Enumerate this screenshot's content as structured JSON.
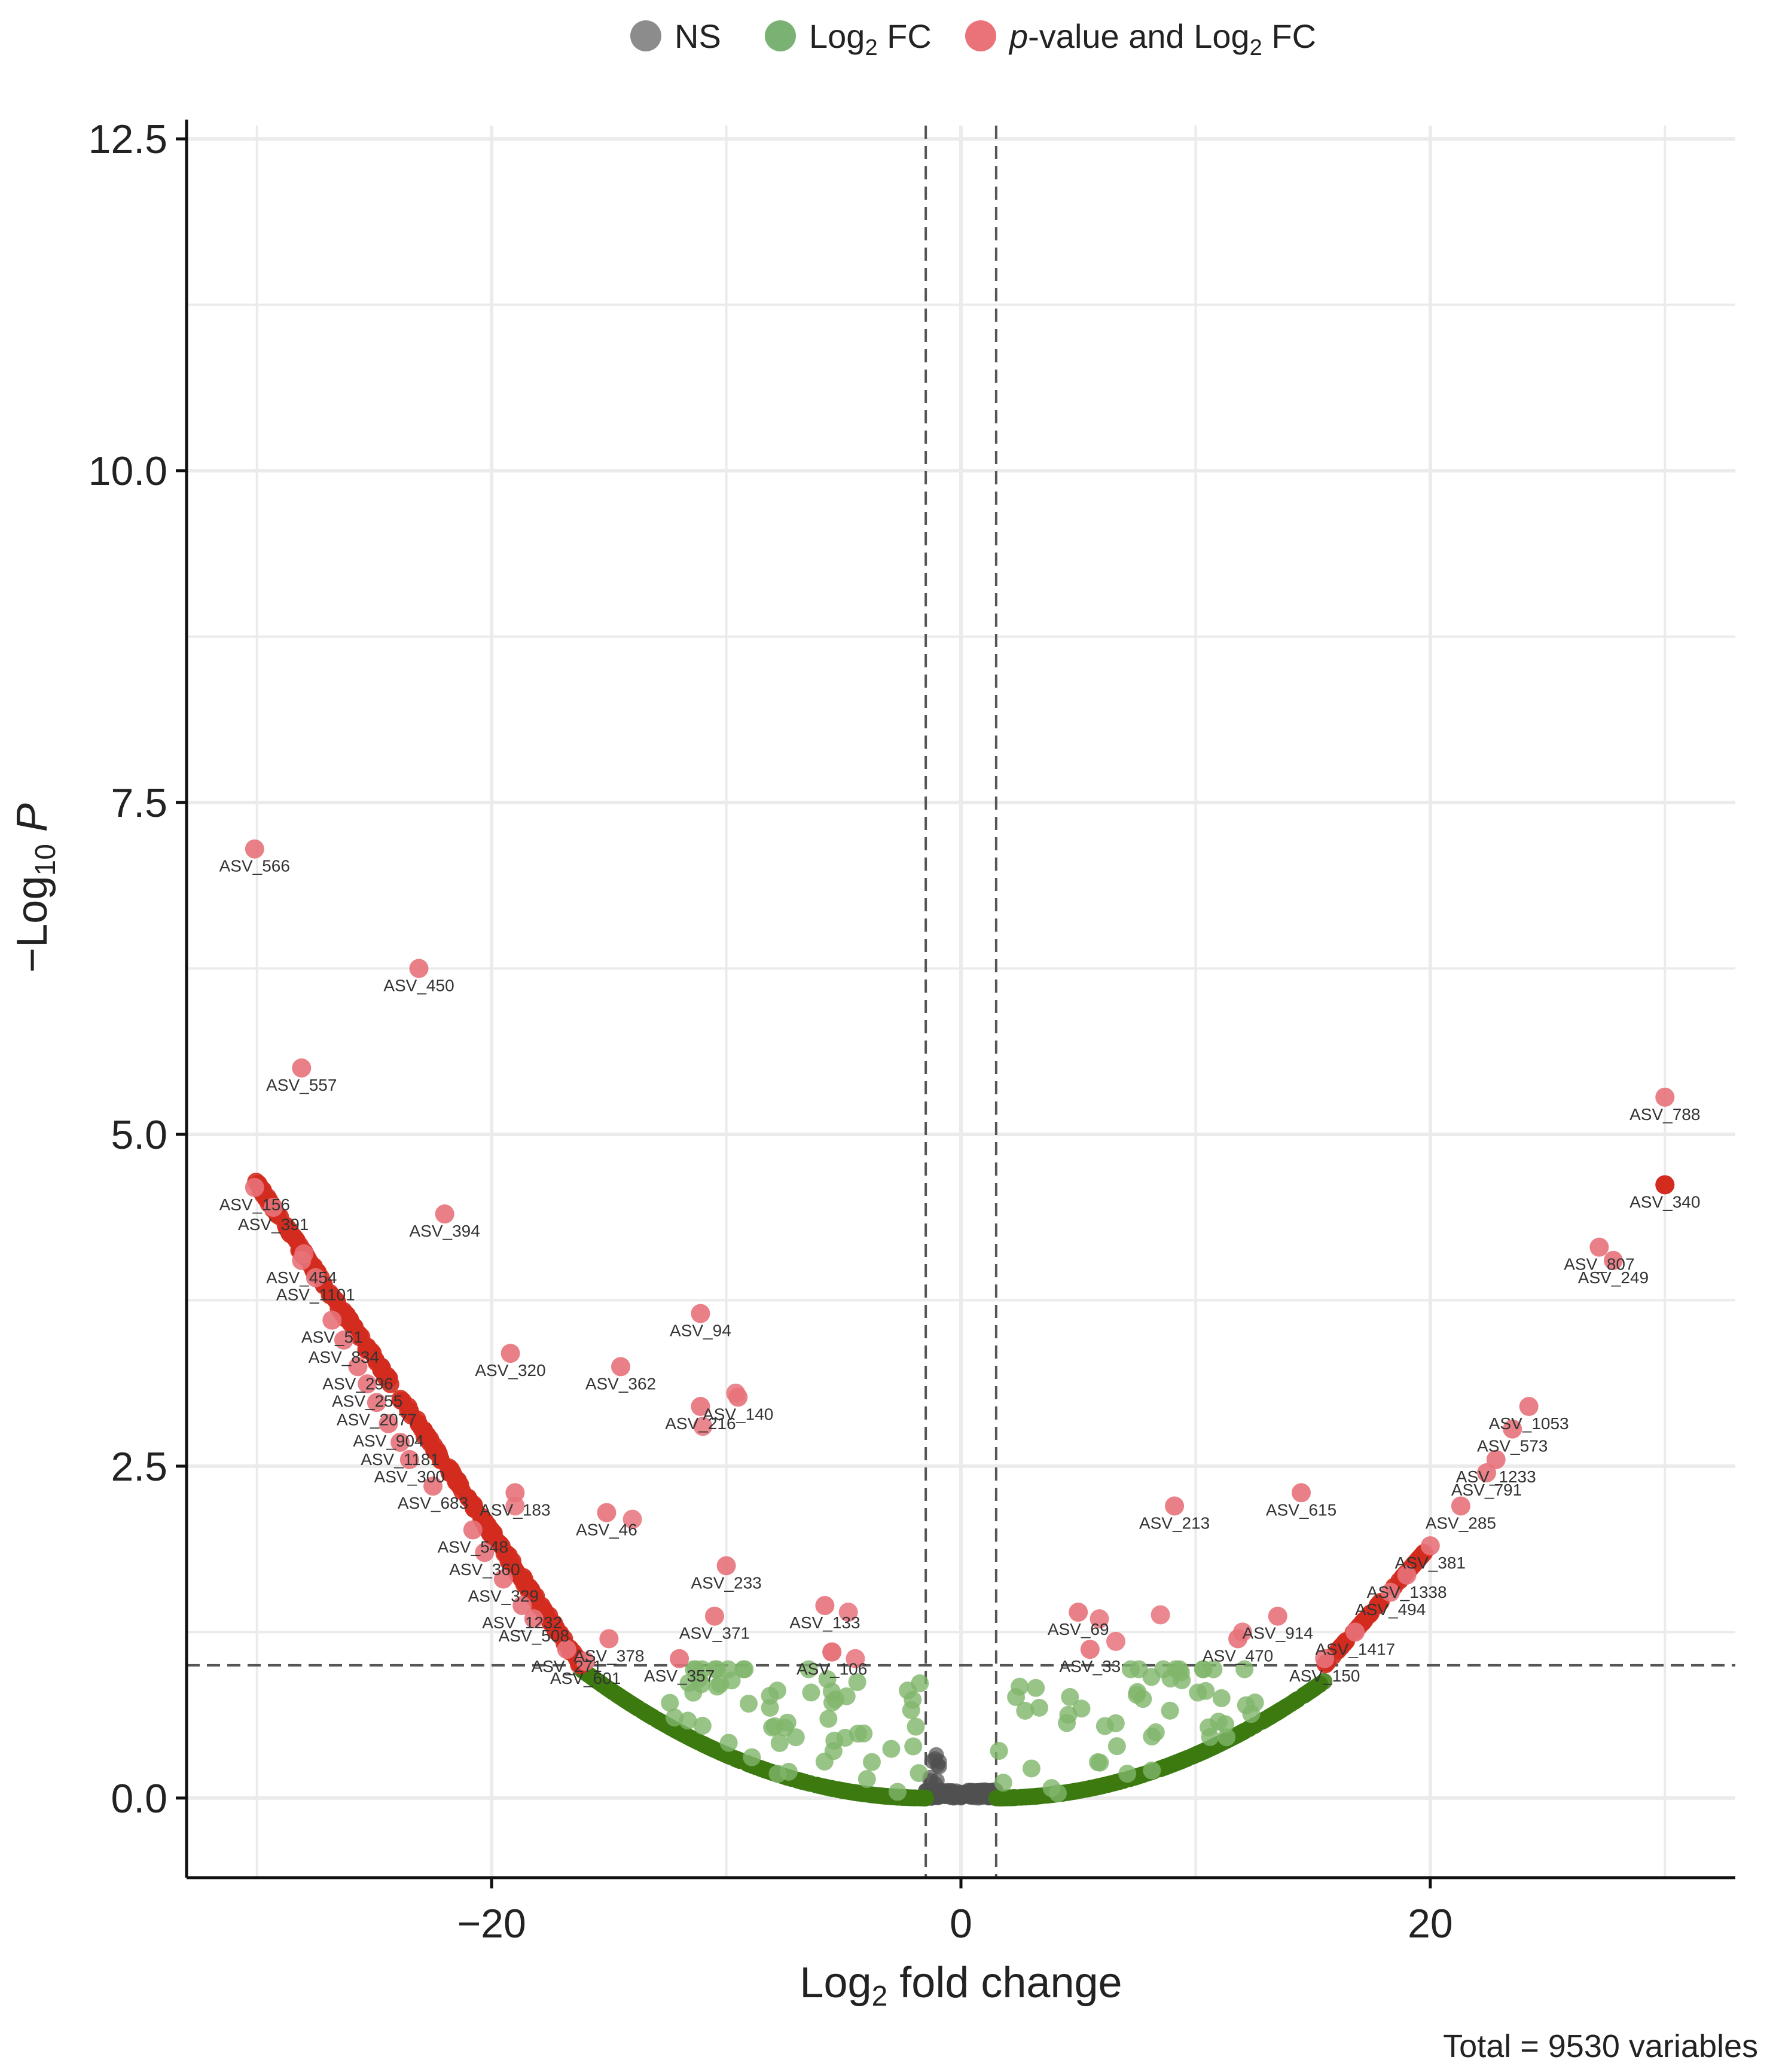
{
  "chart_data": {
    "type": "scatter",
    "title": "",
    "xlabel_main": "Log",
    "xlabel_sub": "2",
    "xlabel_rest": " fold change",
    "ylabel_main": "−Log",
    "ylabel_sub": "10",
    "ylabel_italic": " P",
    "xlim": [
      -33,
      33
    ],
    "ylim": [
      -0.6,
      12.6
    ],
    "x_ticks": [
      -20,
      0,
      20
    ],
    "x_tick_labels": [
      "−20",
      "0",
      "20"
    ],
    "y_ticks": [
      0,
      2.5,
      5,
      7.5,
      10,
      12.5
    ],
    "y_tick_labels": [
      "0.0",
      "2.5",
      "5.0",
      "7.5",
      "10.0",
      "12.5"
    ],
    "grid": true,
    "cutoffs": {
      "fc": [
        -1.5,
        1.5
      ],
      "p": 1.0
    },
    "legend": {
      "placement": "top",
      "entries": [
        {
          "key": "ns",
          "text": "NS",
          "color": "#7f7f7f"
        },
        {
          "key": "fc",
          "text": "Log",
          "sub": "2",
          "rest": " FC",
          "color": "#6aaa64"
        },
        {
          "key": "both",
          "italic": "p",
          "text": "-value and Log",
          "sub": "2",
          "rest": " FC",
          "color": "#e8636a"
        }
      ]
    },
    "colors": {
      "ns": "#505050",
      "fc": "#3c7a10",
      "fc_light": "#7fb56a",
      "both": "#d32b1e",
      "both_light": "#e8727a"
    },
    "caption": "Total = 9530 variables",
    "labeled_points": [
      {
        "x": -30.1,
        "y": 7.15,
        "label": "ASV_566"
      },
      {
        "x": -23.1,
        "y": 6.25,
        "label": "ASV_450"
      },
      {
        "x": -28.1,
        "y": 5.5,
        "label": "ASV_557"
      },
      {
        "x": -30.1,
        "y": 4.6,
        "label": "ASV_156"
      },
      {
        "x": -29.3,
        "y": 4.45,
        "label": "ASV_391"
      },
      {
        "x": -22.0,
        "y": 4.4,
        "label": "ASV_394"
      },
      {
        "x": -28.1,
        "y": 4.05,
        "label": "ASV_454"
      },
      {
        "x": -27.5,
        "y": 3.92,
        "label": "ASV_1101"
      },
      {
        "x": -26.8,
        "y": 3.6,
        "label": "ASV_51"
      },
      {
        "x": -26.3,
        "y": 3.45,
        "label": "ASV_834"
      },
      {
        "x": -25.7,
        "y": 3.25,
        "label": "ASV_296"
      },
      {
        "x": -25.3,
        "y": 3.12,
        "label": "ASV_255"
      },
      {
        "x": -24.9,
        "y": 2.98,
        "label": "ASV_2077"
      },
      {
        "x": -24.4,
        "y": 2.82,
        "label": "ASV_904"
      },
      {
        "x": -23.9,
        "y": 2.68,
        "label": "ASV_1181"
      },
      {
        "x": -23.5,
        "y": 2.55,
        "label": "ASV_300"
      },
      {
        "x": -22.5,
        "y": 2.35,
        "label": "ASV_683"
      },
      {
        "x": -19.2,
        "y": 3.35,
        "label": "ASV_320"
      },
      {
        "x": -14.5,
        "y": 3.25,
        "label": "ASV_362"
      },
      {
        "x": -11.1,
        "y": 3.65,
        "label": "ASV_94"
      },
      {
        "x": -11.1,
        "y": 2.95,
        "label": "ASV_216"
      },
      {
        "x": -9.5,
        "y": 3.02,
        "label": "ASV_140"
      },
      {
        "x": -19.0,
        "y": 2.3,
        "label": "ASV_183"
      },
      {
        "x": -20.8,
        "y": 2.02,
        "label": "ASV_548"
      },
      {
        "x": -15.1,
        "y": 2.15,
        "label": "ASV_46"
      },
      {
        "x": -20.3,
        "y": 1.85,
        "label": "ASV_360"
      },
      {
        "x": -19.5,
        "y": 1.65,
        "label": "ASV_329"
      },
      {
        "x": -10.0,
        "y": 1.75,
        "label": "ASV_233"
      },
      {
        "x": -18.7,
        "y": 1.45,
        "label": "ASV_1232"
      },
      {
        "x": -18.2,
        "y": 1.35,
        "label": "ASV_508"
      },
      {
        "x": -10.5,
        "y": 1.37,
        "label": "ASV_371"
      },
      {
        "x": -5.8,
        "y": 1.45,
        "label": "ASV_133"
      },
      {
        "x": -15.0,
        "y": 1.2,
        "label": "ASV_378"
      },
      {
        "x": -16.8,
        "y": 1.12,
        "label": "ASV_271"
      },
      {
        "x": -16.0,
        "y": 1.03,
        "label": "ASV_601"
      },
      {
        "x": -12.0,
        "y": 1.05,
        "label": "ASV_357"
      },
      {
        "x": -5.5,
        "y": 1.1,
        "label": "ASV_106"
      },
      {
        "x": 30.0,
        "y": 5.28,
        "label": "ASV_788"
      },
      {
        "x": 30.0,
        "y": 4.62,
        "label": "ASV_340"
      },
      {
        "x": 27.2,
        "y": 4.15,
        "label": "ASV_807"
      },
      {
        "x": 27.8,
        "y": 4.05,
        "label": "ASV_249"
      },
      {
        "x": 24.2,
        "y": 2.95,
        "label": "ASV_1053"
      },
      {
        "x": 23.5,
        "y": 2.78,
        "label": "ASV_573"
      },
      {
        "x": 22.8,
        "y": 2.55,
        "label": "ASV_1233"
      },
      {
        "x": 22.4,
        "y": 2.45,
        "label": "ASV_791"
      },
      {
        "x": 21.3,
        "y": 2.2,
        "label": "ASV_285"
      },
      {
        "x": 9.1,
        "y": 2.2,
        "label": "ASV_213"
      },
      {
        "x": 14.5,
        "y": 2.3,
        "label": "ASV_615"
      },
      {
        "x": 20.0,
        "y": 1.9,
        "label": "ASV_381"
      },
      {
        "x": 19.0,
        "y": 1.68,
        "label": "ASV_1338"
      },
      {
        "x": 18.3,
        "y": 1.55,
        "label": "ASV_494"
      },
      {
        "x": 13.5,
        "y": 1.37,
        "label": "ASV_914"
      },
      {
        "x": 5.0,
        "y": 1.4,
        "label": "ASV_69"
      },
      {
        "x": 11.8,
        "y": 1.2,
        "label": "ASV_470"
      },
      {
        "x": 16.8,
        "y": 1.25,
        "label": "ASV_1417"
      },
      {
        "x": 5.5,
        "y": 1.12,
        "label": "ASV_33"
      },
      {
        "x": 15.5,
        "y": 1.05,
        "label": "ASV_150"
      }
    ],
    "extra_significant": [
      {
        "x": -28.0,
        "y": 4.1
      },
      {
        "x": -19.0,
        "y": 2.2
      },
      {
        "x": -11.0,
        "y": 2.8
      },
      {
        "x": -9.6,
        "y": 3.05
      },
      {
        "x": -5.5,
        "y": 1.1
      },
      {
        "x": -4.8,
        "y": 1.4
      },
      {
        "x": -4.5,
        "y": 1.05
      },
      {
        "x": -14.0,
        "y": 2.1
      },
      {
        "x": 5.9,
        "y": 1.35
      },
      {
        "x": 6.6,
        "y": 1.18
      },
      {
        "x": 8.5,
        "y": 1.38
      },
      {
        "x": 12.0,
        "y": 1.25
      }
    ]
  }
}
